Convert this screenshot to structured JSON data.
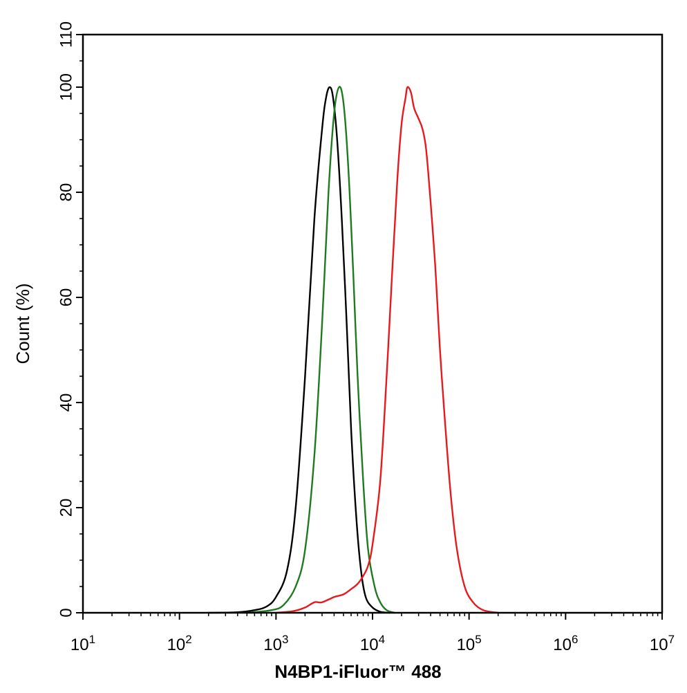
{
  "chart_data": {
    "type": "line",
    "title": "",
    "xlabel": "N4BP1-iFluor™ 488",
    "ylabel": "Count  (%)",
    "x_scale": "log",
    "xlim": [
      10,
      10000000
    ],
    "ylim": [
      0,
      110
    ],
    "x_ticks": [
      {
        "base": "10",
        "exp": "1",
        "value": 10
      },
      {
        "base": "10",
        "exp": "2",
        "value": 100
      },
      {
        "base": "10",
        "exp": "3",
        "value": 1000
      },
      {
        "base": "10",
        "exp": "4",
        "value": 10000
      },
      {
        "base": "10",
        "exp": "5",
        "value": 100000
      },
      {
        "base": "10",
        "exp": "6",
        "value": 1000000
      },
      {
        "base": "10",
        "exp": "7",
        "value": 10000000
      }
    ],
    "y_ticks": [
      {
        "label": "0",
        "value": 0
      },
      {
        "label": "20",
        "value": 20
      },
      {
        "label": "40",
        "value": 40
      },
      {
        "label": "60",
        "value": 60
      },
      {
        "label": "80",
        "value": 80
      },
      {
        "label": "100",
        "value": 100
      },
      {
        "label": "110",
        "value": 110
      }
    ],
    "grid": false,
    "legend": "none",
    "series": [
      {
        "color": "#000000",
        "points": [
          [
            200,
            0
          ],
          [
            400,
            0.1
          ],
          [
            600,
            0.5
          ],
          [
            800,
            1.2
          ],
          [
            1000,
            3
          ],
          [
            1300,
            8
          ],
          [
            1600,
            20
          ],
          [
            2000,
            45
          ],
          [
            2500,
            75
          ],
          [
            3000,
            92
          ],
          [
            3300,
            98
          ],
          [
            3600,
            100
          ],
          [
            3900,
            98
          ],
          [
            4300,
            90
          ],
          [
            4800,
            75
          ],
          [
            5400,
            55
          ],
          [
            6000,
            35
          ],
          [
            6800,
            18
          ],
          [
            7600,
            8
          ],
          [
            8500,
            3
          ],
          [
            10000,
            1
          ],
          [
            12000,
            0.2
          ],
          [
            15000,
            0
          ]
        ]
      },
      {
        "color": "#1f7a1f",
        "points": [
          [
            500,
            0
          ],
          [
            900,
            0.5
          ],
          [
            1200,
            1.5
          ],
          [
            1600,
            5
          ],
          [
            2000,
            12
          ],
          [
            2500,
            30
          ],
          [
            3000,
            55
          ],
          [
            3500,
            80
          ],
          [
            4000,
            95
          ],
          [
            4500,
            100
          ],
          [
            5000,
            97
          ],
          [
            5600,
            85
          ],
          [
            6300,
            65
          ],
          [
            7000,
            45
          ],
          [
            8000,
            25
          ],
          [
            9000,
            12
          ],
          [
            10500,
            5
          ],
          [
            12000,
            2
          ],
          [
            14000,
            0.5
          ],
          [
            17000,
            0
          ]
        ]
      },
      {
        "color": "#e8191d",
        "points": [
          [
            1000,
            0
          ],
          [
            1500,
            0.3
          ],
          [
            2000,
            1
          ],
          [
            2500,
            2
          ],
          [
            3000,
            2
          ],
          [
            4000,
            3
          ],
          [
            5000,
            3.5
          ],
          [
            6000,
            4.5
          ],
          [
            7000,
            5.5
          ],
          [
            8000,
            7
          ],
          [
            9000,
            9
          ],
          [
            10000,
            13
          ],
          [
            12000,
            25
          ],
          [
            14000,
            45
          ],
          [
            16000,
            65
          ],
          [
            18000,
            82
          ],
          [
            20000,
            93
          ],
          [
            22000,
            98
          ],
          [
            23000,
            100
          ],
          [
            25000,
            99
          ],
          [
            27000,
            96
          ],
          [
            30000,
            94
          ],
          [
            33000,
            92
          ],
          [
            36000,
            88
          ],
          [
            40000,
            78
          ],
          [
            45000,
            65
          ],
          [
            50000,
            50
          ],
          [
            57000,
            35
          ],
          [
            65000,
            22
          ],
          [
            75000,
            12
          ],
          [
            90000,
            5
          ],
          [
            110000,
            2
          ],
          [
            140000,
            0.5
          ],
          [
            200000,
            0
          ]
        ]
      }
    ]
  }
}
